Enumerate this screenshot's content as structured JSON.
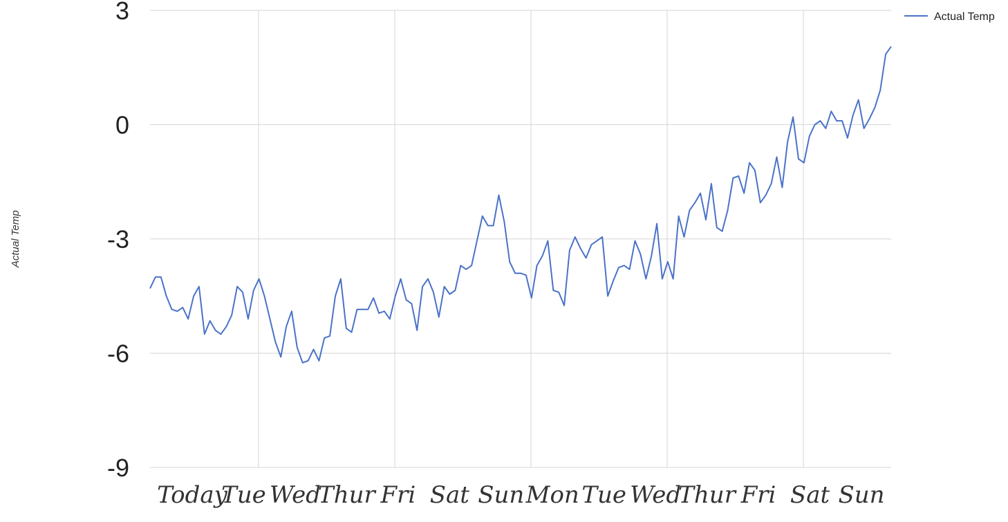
{
  "chart_data": {
    "type": "line",
    "title": "",
    "xlabel": "",
    "ylabel": "Actual Temp",
    "ylim": [
      -9,
      3
    ],
    "yticks": [
      3,
      0,
      -3,
      -6,
      -9
    ],
    "grid": true,
    "legend_position": "top-right",
    "x_tick_labels": [
      "Today",
      "Tue",
      "Wed",
      "Thur",
      "Fri",
      "Sat",
      "Sun",
      "Mon",
      "Tue",
      "Wed",
      "Thur",
      "Fri",
      "Sat",
      "Sun"
    ],
    "series": [
      {
        "name": "Actual Temp",
        "color": "#4a72c8",
        "values": [
          -4.3,
          -4.0,
          -4.0,
          -4.5,
          -4.85,
          -4.9,
          -4.8,
          -5.1,
          -4.5,
          -4.25,
          -5.5,
          -5.15,
          -5.4,
          -5.5,
          -5.3,
          -5.0,
          -4.25,
          -4.4,
          -5.1,
          -4.35,
          -4.05,
          -4.5,
          -5.1,
          -5.7,
          -6.1,
          -5.3,
          -4.9,
          -5.85,
          -6.25,
          -6.2,
          -5.9,
          -6.2,
          -5.6,
          -5.55,
          -4.5,
          -4.05,
          -5.35,
          -5.45,
          -4.85,
          -4.85,
          -4.85,
          -4.55,
          -4.95,
          -4.9,
          -5.1,
          -4.5,
          -4.05,
          -4.6,
          -4.7,
          -5.4,
          -4.25,
          -4.05,
          -4.4,
          -5.05,
          -4.25,
          -4.45,
          -4.35,
          -3.7,
          -3.8,
          -3.7,
          -3.05,
          -2.4,
          -2.65,
          -2.65,
          -1.85,
          -2.55,
          -3.6,
          -3.9,
          -3.9,
          -3.95,
          -4.55,
          -3.7,
          -3.45,
          -3.05,
          -4.35,
          -4.4,
          -4.75,
          -3.3,
          -2.95,
          -3.25,
          -3.5,
          -3.15,
          -3.05,
          -2.95,
          -4.5,
          -4.1,
          -3.75,
          -3.7,
          -3.8,
          -3.05,
          -3.4,
          -4.05,
          -3.45,
          -2.6,
          -4.05,
          -3.6,
          -4.05,
          -2.4,
          -2.95,
          -2.25,
          -2.05,
          -1.8,
          -2.5,
          -1.55,
          -2.7,
          -2.8,
          -2.25,
          -1.4,
          -1.35,
          -1.8,
          -1.0,
          -1.2,
          -2.05,
          -1.85,
          -1.55,
          -0.85,
          -1.65,
          -0.45,
          0.2,
          -0.9,
          -1.0,
          -0.3,
          0.0,
          0.1,
          -0.1,
          0.35,
          0.1,
          0.1,
          -0.35,
          0.25,
          0.65,
          -0.1,
          0.15,
          0.45,
          0.9,
          1.85,
          2.05
        ]
      }
    ]
  }
}
